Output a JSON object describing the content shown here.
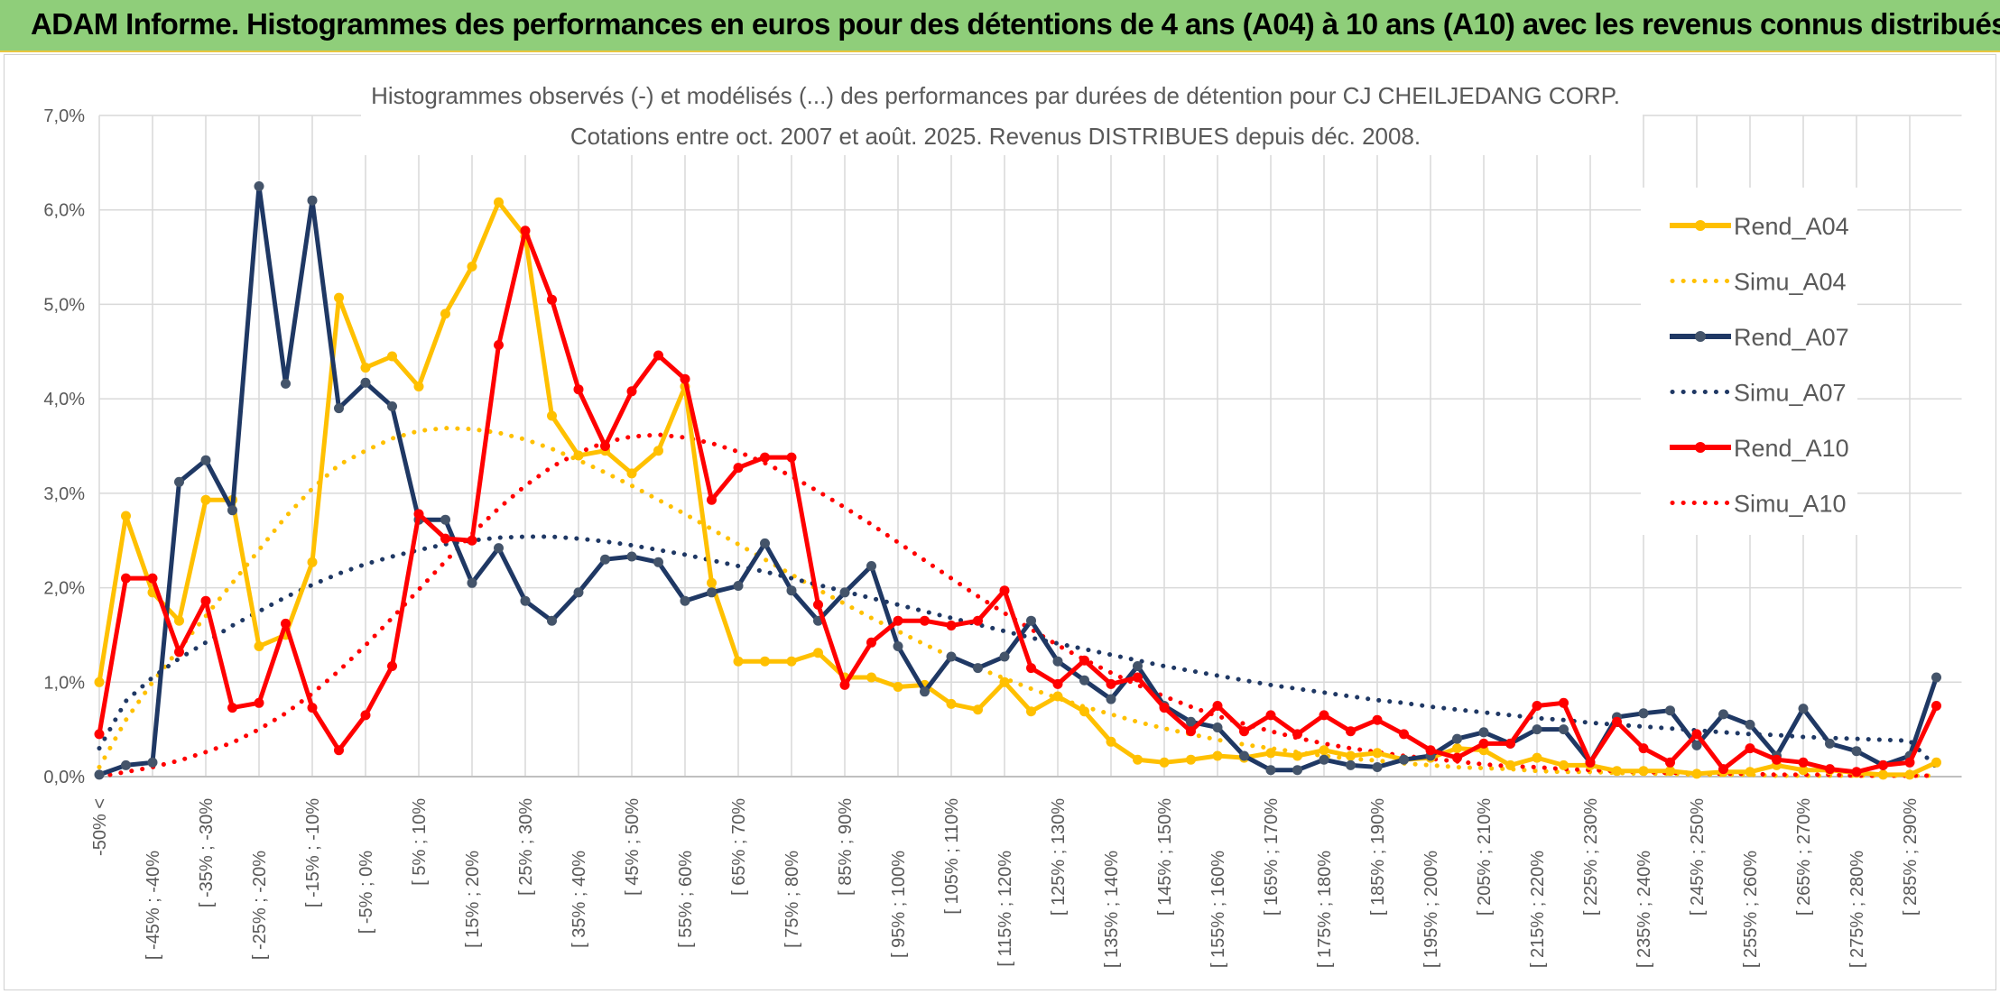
{
  "header": {
    "title": "ADAM Informe. Histogrammes des performances en euros pour des détentions de 4 ans (A04) à 10 ans (A10) avec les revenus connus distribués"
  },
  "chart_data": {
    "type": "line",
    "title": "Histogrammes observés (-) et modélisés (...) des performances par durées de détention pour CJ CHEILJEDANG CORP.",
    "subtitle": "Cotations entre oct. 2007 et août. 2025. Revenus DISTRIBUES depuis déc. 2008.",
    "xlabel": "",
    "ylabel": "",
    "ylim": [
      0,
      7
    ],
    "y_ticks": [
      "0,0%",
      "1,0%",
      "2,0%",
      "3,0%",
      "4,0%",
      "5,0%",
      "6,0%",
      "7,0%"
    ],
    "grid": true,
    "legend_position": "right",
    "x_labels": [
      "-50% <",
      "[ -45% ; -40%",
      "[ -35% ; -30%",
      "[ -25% ; -20%",
      "[ -15% ; -10%",
      "[ -5% ; 0%",
      "[ 5% ; 10%",
      "[ 15% ; 20%",
      "[ 25% ; 30%",
      "[ 35% ; 40%",
      "[ 45% ; 50%",
      "[ 55% ; 60%",
      "[ 65% ; 70%",
      "[ 75% ; 80%",
      "[ 85% ; 90%",
      "[ 95% ; 100%",
      "[ 105% ; 110%",
      "[ 115% ; 120%",
      "[ 125% ; 130%",
      "[ 135% ; 140%",
      "[ 145% ; 150%",
      "[ 155% ; 160%",
      "[ 165% ; 170%",
      "[ 175% ; 180%",
      "[ 185% ; 190%",
      "[ 195% ; 200%",
      "[ 205% ; 210%",
      "[ 215% ; 220%",
      "[ 225% ; 230%",
      "[ 235% ; 240%",
      "[ 245% ; 250%",
      "[ 255% ; 260%",
      "[ 265% ; 270%",
      "[ 275% ; 280%",
      "[ 285% ; 290%"
    ],
    "x_label_indices": [
      0,
      2,
      4,
      6,
      8,
      10,
      12,
      14,
      16,
      18,
      20,
      22,
      24,
      26,
      28,
      30,
      32,
      34,
      36,
      38,
      40,
      42,
      44,
      46,
      48,
      50,
      52,
      54,
      56,
      58,
      60,
      62,
      64,
      66,
      68
    ],
    "bin_count": 70,
    "series": [
      {
        "name": "Rend_A04",
        "color": "#FFC000",
        "style": "solid",
        "markers": true,
        "values": [
          1.0,
          2.76,
          1.95,
          1.65,
          2.93,
          2.93,
          1.38,
          1.5,
          2.27,
          5.07,
          4.33,
          4.45,
          4.13,
          4.9,
          5.4,
          6.08,
          5.72,
          3.82,
          3.4,
          3.45,
          3.21,
          3.45,
          4.13,
          2.05,
          1.22,
          1.22,
          1.22,
          1.31,
          1.05,
          1.05,
          0.95,
          0.97,
          0.77,
          0.71,
          1.0,
          0.69,
          0.85,
          0.69,
          0.37,
          0.18,
          0.15,
          0.18,
          0.22,
          0.2,
          0.25,
          0.22,
          0.28,
          0.22,
          0.25,
          0.18,
          0.2,
          0.3,
          0.28,
          0.12,
          0.2,
          0.12,
          0.12,
          0.06,
          0.06,
          0.06,
          0.03,
          0.05,
          0.05,
          0.12,
          0.07,
          0.07,
          0.04,
          0.02,
          0.02,
          0.15
        ]
      },
      {
        "name": "Simu_A04",
        "color": "#FFC000",
        "style": "dotted",
        "markers": false,
        "values": [
          0.1,
          0.6,
          1.0,
          1.35,
          1.7,
          2.05,
          2.4,
          2.75,
          3.05,
          3.3,
          3.45,
          3.58,
          3.66,
          3.69,
          3.68,
          3.64,
          3.57,
          3.47,
          3.35,
          3.22,
          3.08,
          2.93,
          2.78,
          2.62,
          2.46,
          2.3,
          2.14,
          1.98,
          1.83,
          1.68,
          1.54,
          1.4,
          1.27,
          1.15,
          1.04,
          0.93,
          0.83,
          0.74,
          0.66,
          0.58,
          0.51,
          0.45,
          0.39,
          0.34,
          0.3,
          0.26,
          0.22,
          0.19,
          0.17,
          0.14,
          0.12,
          0.1,
          0.09,
          0.08,
          0.06,
          0.05,
          0.05,
          0.04,
          0.03,
          0.03,
          0.02,
          0.02,
          0.02,
          0.01,
          0.01,
          0.01,
          0.01,
          0.01,
          0.01,
          0.01
        ]
      },
      {
        "name": "Rend_A07",
        "color": "#1F3864",
        "style": "solid",
        "markers": true,
        "values": [
          0.02,
          0.12,
          0.15,
          3.12,
          3.35,
          2.82,
          6.25,
          4.16,
          6.1,
          3.9,
          4.17,
          3.92,
          2.72,
          2.72,
          2.05,
          2.42,
          1.86,
          1.65,
          1.95,
          2.3,
          2.33,
          2.27,
          1.86,
          1.95,
          2.02,
          2.47,
          1.97,
          1.65,
          1.95,
          2.23,
          1.38,
          0.9,
          1.27,
          1.15,
          1.27,
          1.65,
          1.22,
          1.02,
          0.82,
          1.17,
          0.75,
          0.58,
          0.52,
          0.22,
          0.07,
          0.07,
          0.18,
          0.12,
          0.1,
          0.18,
          0.22,
          0.4,
          0.47,
          0.35,
          0.5,
          0.5,
          0.15,
          0.63,
          0.67,
          0.7,
          0.33,
          0.66,
          0.55,
          0.22,
          0.72,
          0.35,
          0.27,
          0.12,
          0.22,
          1.05
        ]
      },
      {
        "name": "Simu_A07",
        "color": "#1F3864",
        "style": "dotted",
        "markers": false,
        "values": [
          0.3,
          0.8,
          1.05,
          1.25,
          1.42,
          1.6,
          1.75,
          1.9,
          2.03,
          2.15,
          2.25,
          2.33,
          2.4,
          2.46,
          2.5,
          2.53,
          2.54,
          2.54,
          2.52,
          2.49,
          2.45,
          2.4,
          2.35,
          2.29,
          2.23,
          2.17,
          2.1,
          2.03,
          1.96,
          1.89,
          1.82,
          1.75,
          1.68,
          1.61,
          1.54,
          1.47,
          1.41,
          1.35,
          1.29,
          1.23,
          1.17,
          1.12,
          1.07,
          1.02,
          0.97,
          0.93,
          0.89,
          0.85,
          0.81,
          0.78,
          0.74,
          0.71,
          0.68,
          0.65,
          0.62,
          0.6,
          0.57,
          0.55,
          0.53,
          0.51,
          0.49,
          0.47,
          0.45,
          0.44,
          0.42,
          0.41,
          0.4,
          0.39,
          0.38,
          0.1
        ]
      },
      {
        "name": "Rend_A10",
        "color": "#FF0000",
        "style": "solid",
        "markers": true,
        "values": [
          0.45,
          2.1,
          2.1,
          1.32,
          1.86,
          0.73,
          0.78,
          1.62,
          0.73,
          0.28,
          0.65,
          1.17,
          2.78,
          2.52,
          2.5,
          4.57,
          5.78,
          5.05,
          4.1,
          3.5,
          4.08,
          4.46,
          4.21,
          2.93,
          3.27,
          3.38,
          3.38,
          1.82,
          0.97,
          1.42,
          1.65,
          1.65,
          1.6,
          1.65,
          1.97,
          1.15,
          0.98,
          1.23,
          0.98,
          1.05,
          0.73,
          0.48,
          0.75,
          0.48,
          0.65,
          0.45,
          0.65,
          0.48,
          0.6,
          0.45,
          0.28,
          0.2,
          0.35,
          0.35,
          0.75,
          0.78,
          0.15,
          0.58,
          0.3,
          0.15,
          0.45,
          0.08,
          0.3,
          0.18,
          0.15,
          0.08,
          0.05,
          0.12,
          0.15,
          0.75
        ]
      },
      {
        "name": "Simu_A10",
        "color": "#FF0000",
        "style": "dotted",
        "markers": false,
        "values": [
          0.0,
          0.05,
          0.1,
          0.17,
          0.26,
          0.36,
          0.5,
          0.67,
          0.88,
          1.12,
          1.39,
          1.68,
          1.98,
          2.28,
          2.57,
          2.84,
          3.08,
          3.28,
          3.43,
          3.54,
          3.6,
          3.62,
          3.59,
          3.53,
          3.44,
          3.32,
          3.18,
          3.02,
          2.85,
          2.67,
          2.48,
          2.29,
          2.1,
          1.91,
          1.73,
          1.56,
          1.39,
          1.24,
          1.1,
          0.97,
          0.85,
          0.74,
          0.64,
          0.56,
          0.48,
          0.41,
          0.35,
          0.3,
          0.26,
          0.22,
          0.19,
          0.16,
          0.13,
          0.11,
          0.1,
          0.08,
          0.07,
          0.06,
          0.05,
          0.04,
          0.04,
          0.03,
          0.03,
          0.02,
          0.02,
          0.02,
          0.01,
          0.01,
          0.01,
          0.01
        ]
      }
    ]
  }
}
